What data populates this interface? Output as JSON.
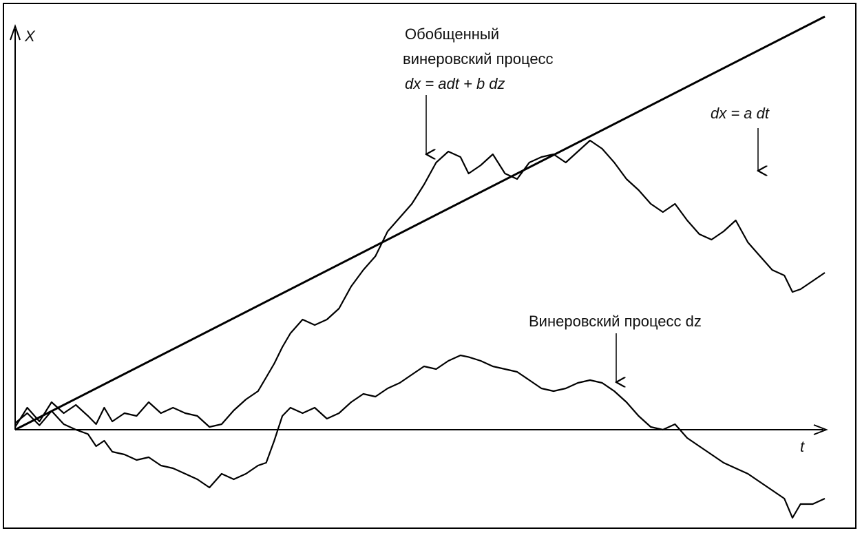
{
  "chart_data": {
    "type": "line",
    "xlabel": "t",
    "ylabel": "X",
    "grid": false,
    "series": [
      {
        "name": "dx = a dt",
        "key": "drift",
        "points": [
          [
            0,
            0
          ],
          [
            1,
            0.75
          ]
        ]
      },
      {
        "name": "Винеровский процесс dz",
        "key": "wiener",
        "points": [
          [
            0.0,
            0.012
          ],
          [
            0.015,
            0.03
          ],
          [
            0.03,
            0.008
          ],
          [
            0.045,
            0.034
          ],
          [
            0.06,
            0.01
          ],
          [
            0.075,
            0.0
          ],
          [
            0.09,
            -0.008
          ],
          [
            0.1,
            -0.03
          ],
          [
            0.11,
            -0.02
          ],
          [
            0.12,
            -0.04
          ],
          [
            0.135,
            -0.045
          ],
          [
            0.15,
            -0.055
          ],
          [
            0.165,
            -0.05
          ],
          [
            0.18,
            -0.065
          ],
          [
            0.195,
            -0.07
          ],
          [
            0.21,
            -0.08
          ],
          [
            0.225,
            -0.09
          ],
          [
            0.24,
            -0.105
          ],
          [
            0.255,
            -0.08
          ],
          [
            0.27,
            -0.09
          ],
          [
            0.285,
            -0.08
          ],
          [
            0.3,
            -0.065
          ],
          [
            0.31,
            -0.06
          ],
          [
            0.32,
            -0.02
          ],
          [
            0.33,
            0.025
          ],
          [
            0.34,
            0.04
          ],
          [
            0.355,
            0.03
          ],
          [
            0.37,
            0.04
          ],
          [
            0.385,
            0.02
          ],
          [
            0.4,
            0.03
          ],
          [
            0.415,
            0.05
          ],
          [
            0.43,
            0.065
          ],
          [
            0.445,
            0.06
          ],
          [
            0.46,
            0.075
          ],
          [
            0.475,
            0.085
          ],
          [
            0.49,
            0.1
          ],
          [
            0.505,
            0.115
          ],
          [
            0.52,
            0.11
          ],
          [
            0.535,
            0.125
          ],
          [
            0.55,
            0.135
          ],
          [
            0.56,
            0.132
          ],
          [
            0.575,
            0.125
          ],
          [
            0.59,
            0.115
          ],
          [
            0.605,
            0.11
          ],
          [
            0.62,
            0.105
          ],
          [
            0.635,
            0.09
          ],
          [
            0.65,
            0.075
          ],
          [
            0.665,
            0.07
          ],
          [
            0.68,
            0.075
          ],
          [
            0.695,
            0.085
          ],
          [
            0.71,
            0.09
          ],
          [
            0.725,
            0.085
          ],
          [
            0.74,
            0.07
          ],
          [
            0.755,
            0.05
          ],
          [
            0.77,
            0.025
          ],
          [
            0.785,
            0.005
          ],
          [
            0.8,
            0.0
          ],
          [
            0.815,
            0.01
          ],
          [
            0.83,
            -0.015
          ],
          [
            0.845,
            -0.03
          ],
          [
            0.86,
            -0.045
          ],
          [
            0.875,
            -0.06
          ],
          [
            0.89,
            -0.07
          ],
          [
            0.905,
            -0.08
          ],
          [
            0.92,
            -0.095
          ],
          [
            0.935,
            -0.11
          ],
          [
            0.95,
            -0.125
          ],
          [
            0.96,
            -0.16
          ],
          [
            0.97,
            -0.135
          ],
          [
            0.985,
            -0.135
          ],
          [
            1.0,
            -0.125
          ]
        ]
      },
      {
        "name": "Обобщенный винеровский процесс dx = a dt + b dz",
        "key": "generalized",
        "points": [
          [
            0.0,
            0.005
          ],
          [
            0.015,
            0.04
          ],
          [
            0.03,
            0.015
          ],
          [
            0.045,
            0.05
          ],
          [
            0.06,
            0.03
          ],
          [
            0.075,
            0.045
          ],
          [
            0.09,
            0.025
          ],
          [
            0.1,
            0.01
          ],
          [
            0.11,
            0.04
          ],
          [
            0.12,
            0.015
          ],
          [
            0.135,
            0.03
          ],
          [
            0.15,
            0.025
          ],
          [
            0.165,
            0.05
          ],
          [
            0.18,
            0.03
          ],
          [
            0.195,
            0.04
          ],
          [
            0.21,
            0.03
          ],
          [
            0.225,
            0.025
          ],
          [
            0.24,
            0.005
          ],
          [
            0.255,
            0.01
          ],
          [
            0.27,
            0.035
          ],
          [
            0.285,
            0.055
          ],
          [
            0.3,
            0.07
          ],
          [
            0.31,
            0.095
          ],
          [
            0.32,
            0.12
          ],
          [
            0.33,
            0.15
          ],
          [
            0.34,
            0.175
          ],
          [
            0.355,
            0.2
          ],
          [
            0.37,
            0.19
          ],
          [
            0.385,
            0.2
          ],
          [
            0.4,
            0.22
          ],
          [
            0.415,
            0.26
          ],
          [
            0.43,
            0.29
          ],
          [
            0.445,
            0.315
          ],
          [
            0.46,
            0.36
          ],
          [
            0.475,
            0.385
          ],
          [
            0.49,
            0.41
          ],
          [
            0.505,
            0.445
          ],
          [
            0.52,
            0.485
          ],
          [
            0.535,
            0.505
          ],
          [
            0.55,
            0.495
          ],
          [
            0.56,
            0.465
          ],
          [
            0.575,
            0.48
          ],
          [
            0.59,
            0.5
          ],
          [
            0.605,
            0.465
          ],
          [
            0.62,
            0.455
          ],
          [
            0.635,
            0.485
          ],
          [
            0.65,
            0.495
          ],
          [
            0.665,
            0.5
          ],
          [
            0.68,
            0.485
          ],
          [
            0.695,
            0.505
          ],
          [
            0.71,
            0.525
          ],
          [
            0.725,
            0.51
          ],
          [
            0.74,
            0.485
          ],
          [
            0.755,
            0.455
          ],
          [
            0.77,
            0.435
          ],
          [
            0.785,
            0.41
          ],
          [
            0.8,
            0.395
          ],
          [
            0.815,
            0.41
          ],
          [
            0.83,
            0.38
          ],
          [
            0.845,
            0.355
          ],
          [
            0.86,
            0.345
          ],
          [
            0.875,
            0.36
          ],
          [
            0.89,
            0.38
          ],
          [
            0.905,
            0.34
          ],
          [
            0.92,
            0.315
          ],
          [
            0.935,
            0.29
          ],
          [
            0.95,
            0.28
          ],
          [
            0.96,
            0.25
          ],
          [
            0.97,
            0.255
          ],
          [
            0.985,
            0.27
          ],
          [
            1.0,
            0.285
          ]
        ]
      }
    ],
    "annotations": {
      "generalized_line1": "Обобщенный",
      "generalized_line2": "винеровский процесс",
      "generalized_formula": "dx = adt + b dz",
      "drift_formula": "dx = a dt",
      "wiener_label": "Винеровский процесс dz"
    },
    "colors": {
      "ink": "#000000"
    }
  }
}
